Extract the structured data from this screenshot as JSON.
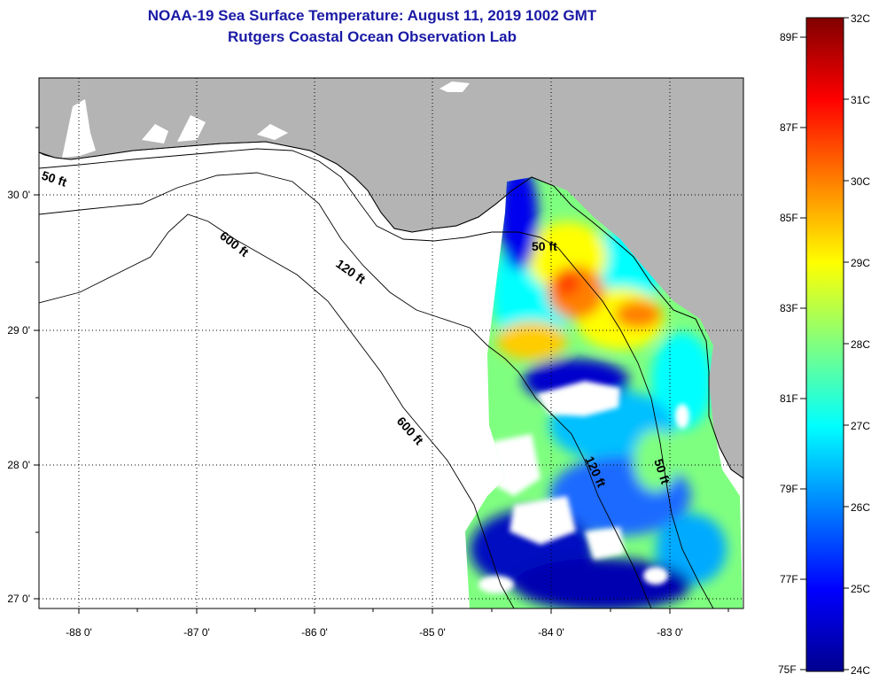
{
  "title": "NOAA-19 Sea Surface Temperature:  August 11, 2019 1002 GMT",
  "subtitle": "Rutgers Coastal Ocean Observation Lab",
  "lon_labels": [
    "-88 0'",
    "-87 0'",
    "-86 0'",
    "-85 0'",
    "-84 0'",
    "-83 0'"
  ],
  "lat_labels": [
    "30 0'",
    "29 0'",
    "28 0'",
    "27 0'"
  ],
  "contour_labels": [
    "50 ft",
    "600 ft",
    "120 ft",
    "50 ft",
    "600 ft",
    "120 ft",
    "50 ft"
  ],
  "colorbar": {
    "f_labels": [
      "89F",
      "87F",
      "85F",
      "83F",
      "81F",
      "79F",
      "77F",
      "75F"
    ],
    "c_labels": [
      "32C",
      "31C",
      "30C",
      "29C",
      "28C",
      "27C",
      "26C",
      "25C",
      "24C"
    ],
    "range_c": [
      24,
      32
    ]
  },
  "colors": {
    "title": "#1a1aa6",
    "land": "#b4b4b4",
    "water": "#ffffff"
  }
}
